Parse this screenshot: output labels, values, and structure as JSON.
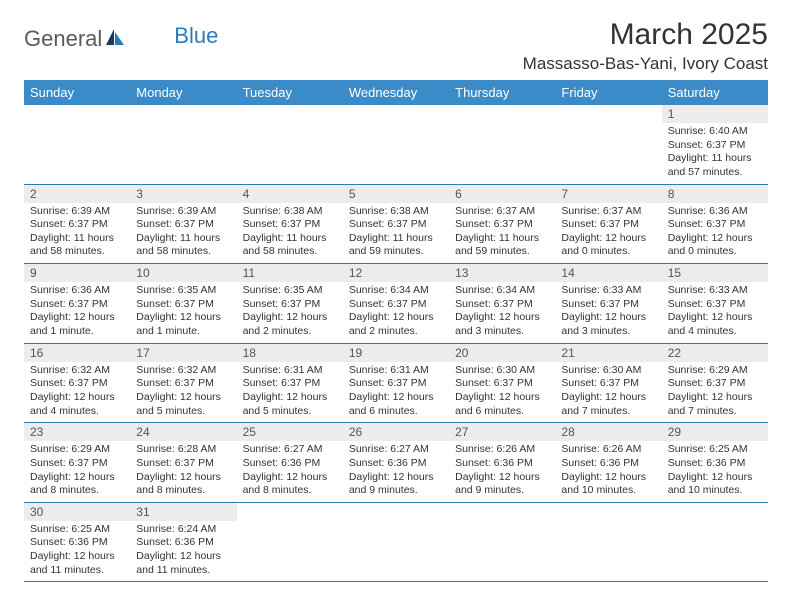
{
  "logo": {
    "text1": "General",
    "text2": "Blue"
  },
  "title": {
    "monthYear": "March 2025",
    "location": "Massasso-Bas-Yani, Ivory Coast"
  },
  "dayHeaders": [
    "Sunday",
    "Monday",
    "Tuesday",
    "Wednesday",
    "Thursday",
    "Friday",
    "Saturday"
  ],
  "colors": {
    "headerBg": "#3b8bc8",
    "headerText": "#ffffff",
    "dayNumBg": "#ececec",
    "cellBorder": "#2a7ab8",
    "logoAccent": "#2a7ab8",
    "logoGray": "#5a5a5a"
  },
  "weeks": [
    [
      {
        "num": "",
        "sunrise": "",
        "sunset": "",
        "daylight": ""
      },
      {
        "num": "",
        "sunrise": "",
        "sunset": "",
        "daylight": ""
      },
      {
        "num": "",
        "sunrise": "",
        "sunset": "",
        "daylight": ""
      },
      {
        "num": "",
        "sunrise": "",
        "sunset": "",
        "daylight": ""
      },
      {
        "num": "",
        "sunrise": "",
        "sunset": "",
        "daylight": ""
      },
      {
        "num": "",
        "sunrise": "",
        "sunset": "",
        "daylight": ""
      },
      {
        "num": "1",
        "sunrise": "Sunrise: 6:40 AM",
        "sunset": "Sunset: 6:37 PM",
        "daylight": "Daylight: 11 hours and 57 minutes."
      }
    ],
    [
      {
        "num": "2",
        "sunrise": "Sunrise: 6:39 AM",
        "sunset": "Sunset: 6:37 PM",
        "daylight": "Daylight: 11 hours and 58 minutes."
      },
      {
        "num": "3",
        "sunrise": "Sunrise: 6:39 AM",
        "sunset": "Sunset: 6:37 PM",
        "daylight": "Daylight: 11 hours and 58 minutes."
      },
      {
        "num": "4",
        "sunrise": "Sunrise: 6:38 AM",
        "sunset": "Sunset: 6:37 PM",
        "daylight": "Daylight: 11 hours and 58 minutes."
      },
      {
        "num": "5",
        "sunrise": "Sunrise: 6:38 AM",
        "sunset": "Sunset: 6:37 PM",
        "daylight": "Daylight: 11 hours and 59 minutes."
      },
      {
        "num": "6",
        "sunrise": "Sunrise: 6:37 AM",
        "sunset": "Sunset: 6:37 PM",
        "daylight": "Daylight: 11 hours and 59 minutes."
      },
      {
        "num": "7",
        "sunrise": "Sunrise: 6:37 AM",
        "sunset": "Sunset: 6:37 PM",
        "daylight": "Daylight: 12 hours and 0 minutes."
      },
      {
        "num": "8",
        "sunrise": "Sunrise: 6:36 AM",
        "sunset": "Sunset: 6:37 PM",
        "daylight": "Daylight: 12 hours and 0 minutes."
      }
    ],
    [
      {
        "num": "9",
        "sunrise": "Sunrise: 6:36 AM",
        "sunset": "Sunset: 6:37 PM",
        "daylight": "Daylight: 12 hours and 1 minute."
      },
      {
        "num": "10",
        "sunrise": "Sunrise: 6:35 AM",
        "sunset": "Sunset: 6:37 PM",
        "daylight": "Daylight: 12 hours and 1 minute."
      },
      {
        "num": "11",
        "sunrise": "Sunrise: 6:35 AM",
        "sunset": "Sunset: 6:37 PM",
        "daylight": "Daylight: 12 hours and 2 minutes."
      },
      {
        "num": "12",
        "sunrise": "Sunrise: 6:34 AM",
        "sunset": "Sunset: 6:37 PM",
        "daylight": "Daylight: 12 hours and 2 minutes."
      },
      {
        "num": "13",
        "sunrise": "Sunrise: 6:34 AM",
        "sunset": "Sunset: 6:37 PM",
        "daylight": "Daylight: 12 hours and 3 minutes."
      },
      {
        "num": "14",
        "sunrise": "Sunrise: 6:33 AM",
        "sunset": "Sunset: 6:37 PM",
        "daylight": "Daylight: 12 hours and 3 minutes."
      },
      {
        "num": "15",
        "sunrise": "Sunrise: 6:33 AM",
        "sunset": "Sunset: 6:37 PM",
        "daylight": "Daylight: 12 hours and 4 minutes."
      }
    ],
    [
      {
        "num": "16",
        "sunrise": "Sunrise: 6:32 AM",
        "sunset": "Sunset: 6:37 PM",
        "daylight": "Daylight: 12 hours and 4 minutes."
      },
      {
        "num": "17",
        "sunrise": "Sunrise: 6:32 AM",
        "sunset": "Sunset: 6:37 PM",
        "daylight": "Daylight: 12 hours and 5 minutes."
      },
      {
        "num": "18",
        "sunrise": "Sunrise: 6:31 AM",
        "sunset": "Sunset: 6:37 PM",
        "daylight": "Daylight: 12 hours and 5 minutes."
      },
      {
        "num": "19",
        "sunrise": "Sunrise: 6:31 AM",
        "sunset": "Sunset: 6:37 PM",
        "daylight": "Daylight: 12 hours and 6 minutes."
      },
      {
        "num": "20",
        "sunrise": "Sunrise: 6:30 AM",
        "sunset": "Sunset: 6:37 PM",
        "daylight": "Daylight: 12 hours and 6 minutes."
      },
      {
        "num": "21",
        "sunrise": "Sunrise: 6:30 AM",
        "sunset": "Sunset: 6:37 PM",
        "daylight": "Daylight: 12 hours and 7 minutes."
      },
      {
        "num": "22",
        "sunrise": "Sunrise: 6:29 AM",
        "sunset": "Sunset: 6:37 PM",
        "daylight": "Daylight: 12 hours and 7 minutes."
      }
    ],
    [
      {
        "num": "23",
        "sunrise": "Sunrise: 6:29 AM",
        "sunset": "Sunset: 6:37 PM",
        "daylight": "Daylight: 12 hours and 8 minutes."
      },
      {
        "num": "24",
        "sunrise": "Sunrise: 6:28 AM",
        "sunset": "Sunset: 6:37 PM",
        "daylight": "Daylight: 12 hours and 8 minutes."
      },
      {
        "num": "25",
        "sunrise": "Sunrise: 6:27 AM",
        "sunset": "Sunset: 6:36 PM",
        "daylight": "Daylight: 12 hours and 8 minutes."
      },
      {
        "num": "26",
        "sunrise": "Sunrise: 6:27 AM",
        "sunset": "Sunset: 6:36 PM",
        "daylight": "Daylight: 12 hours and 9 minutes."
      },
      {
        "num": "27",
        "sunrise": "Sunrise: 6:26 AM",
        "sunset": "Sunset: 6:36 PM",
        "daylight": "Daylight: 12 hours and 9 minutes."
      },
      {
        "num": "28",
        "sunrise": "Sunrise: 6:26 AM",
        "sunset": "Sunset: 6:36 PM",
        "daylight": "Daylight: 12 hours and 10 minutes."
      },
      {
        "num": "29",
        "sunrise": "Sunrise: 6:25 AM",
        "sunset": "Sunset: 6:36 PM",
        "daylight": "Daylight: 12 hours and 10 minutes."
      }
    ],
    [
      {
        "num": "30",
        "sunrise": "Sunrise: 6:25 AM",
        "sunset": "Sunset: 6:36 PM",
        "daylight": "Daylight: 12 hours and 11 minutes."
      },
      {
        "num": "31",
        "sunrise": "Sunrise: 6:24 AM",
        "sunset": "Sunset: 6:36 PM",
        "daylight": "Daylight: 12 hours and 11 minutes."
      },
      {
        "num": "",
        "sunrise": "",
        "sunset": "",
        "daylight": ""
      },
      {
        "num": "",
        "sunrise": "",
        "sunset": "",
        "daylight": ""
      },
      {
        "num": "",
        "sunrise": "",
        "sunset": "",
        "daylight": ""
      },
      {
        "num": "",
        "sunrise": "",
        "sunset": "",
        "daylight": ""
      },
      {
        "num": "",
        "sunrise": "",
        "sunset": "",
        "daylight": ""
      }
    ]
  ]
}
